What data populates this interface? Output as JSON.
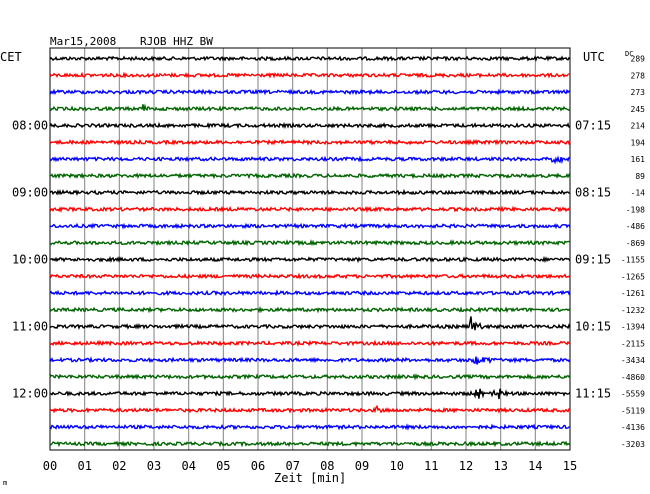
{
  "header": {
    "date": "Mar15,2008",
    "station": "RJOB HHZ BW"
  },
  "labels": {
    "left_zone": "CET",
    "right_zone": "UTC",
    "dc": "DC",
    "xlabel": "Zeit [min]",
    "corner": "m"
  },
  "colors": {
    "cycle": [
      "#000000",
      "#ff0000",
      "#0000ff",
      "#006400"
    ],
    "grid": "#808080",
    "frame": "#000000"
  },
  "chart_data": {
    "type": "line",
    "title": "Mar15,2008    RJOB HHZ BW",
    "xlabel": "Zeit [min]",
    "x_ticks": [
      "00",
      "01",
      "02",
      "03",
      "04",
      "05",
      "06",
      "07",
      "08",
      "09",
      "10",
      "11",
      "12",
      "13",
      "14",
      "15"
    ],
    "xlim": [
      0,
      15
    ],
    "trace_count": 24,
    "left_time_labels": [
      {
        "trace": 4,
        "text": "08:00"
      },
      {
        "trace": 8,
        "text": "09:00"
      },
      {
        "trace": 12,
        "text": "10:00"
      },
      {
        "trace": 16,
        "text": "11:00"
      },
      {
        "trace": 20,
        "text": "12:00"
      }
    ],
    "right_time_labels": [
      {
        "trace": 4,
        "text": "07:15"
      },
      {
        "trace": 8,
        "text": "08:15"
      },
      {
        "trace": 12,
        "text": "09:15"
      },
      {
        "trace": 16,
        "text": "10:15"
      },
      {
        "trace": 20,
        "text": "11:15"
      }
    ],
    "dc_offsets": [
      "289",
      "278",
      "273",
      "245",
      "214",
      "194",
      "161",
      "89",
      "-14",
      "-198",
      "-486",
      "-869",
      "-1155",
      "-1265",
      "-1261",
      "-1232",
      "-1394",
      "-2115",
      "-3434",
      "-4860",
      "-5559",
      "-5119",
      "-4136",
      "-3203"
    ],
    "events": [
      {
        "trace": 3,
        "at_min": 2.7,
        "amp": 4,
        "len_min": 0.3
      },
      {
        "trace": 6,
        "at_min": 14.5,
        "amp": 5,
        "len_min": 0.6
      },
      {
        "trace": 16,
        "at_min": 12.15,
        "amp": 9,
        "len_min": 0.5
      },
      {
        "trace": 18,
        "at_min": 12.2,
        "amp": 6,
        "len_min": 1.0
      },
      {
        "trace": 20,
        "at_min": 12.3,
        "amp": 5,
        "len_min": 0.9
      },
      {
        "trace": 20,
        "at_min": 13.0,
        "amp": 7,
        "len_min": 0.1
      },
      {
        "trace": 21,
        "at_min": 9.4,
        "amp": 4,
        "len_min": 0.4
      }
    ]
  }
}
